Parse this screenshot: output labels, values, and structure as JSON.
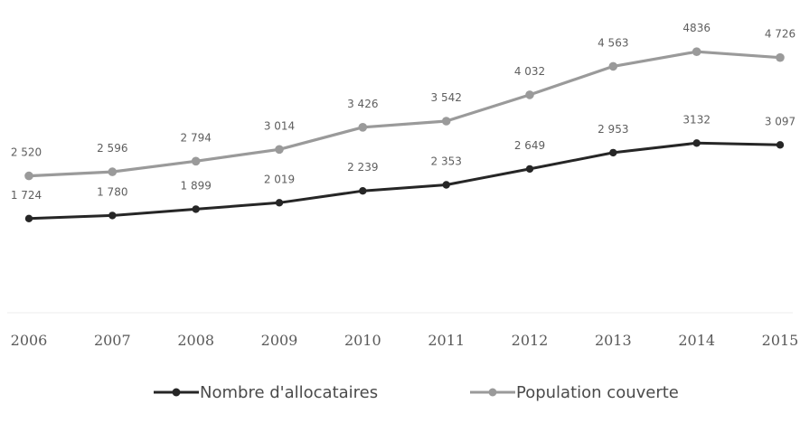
{
  "chart_data": {
    "type": "line",
    "title": "",
    "xlabel": "",
    "ylabel": "",
    "categories": [
      "2006",
      "2007",
      "2008",
      "2009",
      "2010",
      "2011",
      "2012",
      "2013",
      "2014",
      "2015"
    ],
    "series": [
      {
        "name": "Nombre d'allocataires",
        "values": [
          1724,
          1780,
          1899,
          2019,
          2239,
          2353,
          2649,
          2953,
          3132,
          3097
        ],
        "labels": [
          "1 724",
          "1 780",
          "1 899",
          "2 019",
          "2 239",
          "2 353",
          "2 649",
          "2 953",
          "3132",
          "3 097"
        ],
        "color": "#262626"
      },
      {
        "name": "Population couverte",
        "values": [
          2520,
          2596,
          2794,
          3014,
          3426,
          3542,
          4032,
          4563,
          4836,
          4726
        ],
        "labels": [
          "2 520",
          "2 596",
          "2 794",
          "3 014",
          "3 426",
          "3 542",
          "4 032",
          "4 563",
          "4836",
          "4 726"
        ],
        "color": "#9a9a9a"
      }
    ],
    "ylim": [
      0,
      5500
    ],
    "grid": false,
    "legend": "bottom-center"
  }
}
